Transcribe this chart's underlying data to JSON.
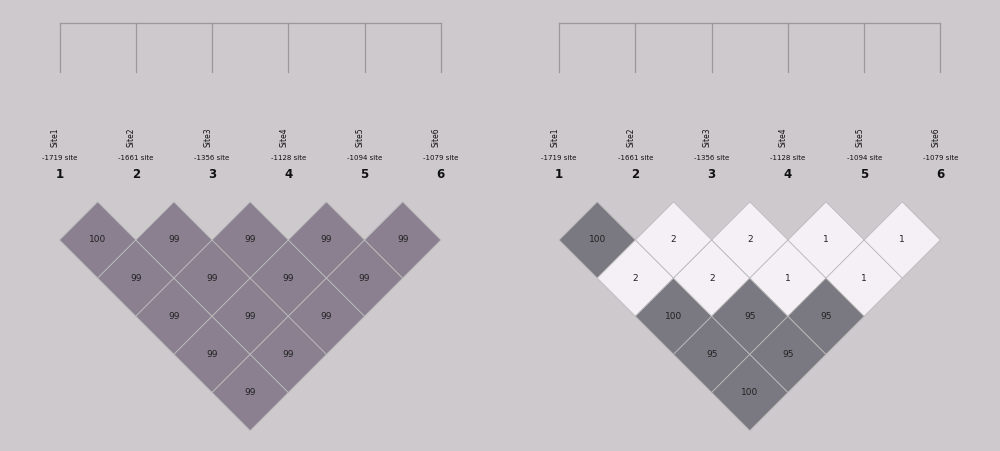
{
  "sites": [
    "Site1",
    "Site2",
    "Site3",
    "Site4",
    "Site5",
    "Site6"
  ],
  "positions": [
    "-1719 site",
    "-1661 site",
    "-1356 site",
    "-1128 site",
    "-1094 site",
    "-1079 site"
  ],
  "bg_color": "#cdc9cd",
  "panel_bg": "#cdc9cd",
  "left_ld_matrix": [
    [
      0,
      100,
      99,
      99,
      99,
      99
    ],
    [
      100,
      0,
      99,
      99,
      99,
      99
    ],
    [
      99,
      99,
      0,
      99,
      99,
      99
    ],
    [
      99,
      99,
      99,
      0,
      99,
      99
    ],
    [
      99,
      99,
      99,
      99,
      0,
      99
    ],
    [
      99,
      99,
      99,
      99,
      99,
      0
    ]
  ],
  "right_ld_matrix": [
    [
      0,
      100,
      2,
      100,
      95,
      100
    ],
    [
      100,
      0,
      2,
      2,
      95,
      95
    ],
    [
      2,
      2,
      0,
      2,
      1,
      95
    ],
    [
      100,
      2,
      2,
      0,
      1,
      1
    ],
    [
      95,
      95,
      1,
      1,
      0,
      1
    ],
    [
      100,
      95,
      95,
      1,
      1,
      0
    ]
  ],
  "left_color_dark": "#8a8090",
  "right_color_dark": "#7a7880",
  "right_color_light": "#f5f0f5",
  "right_color_mid": "#9a9098",
  "diamond_half": 0.5,
  "label_color": "#222222",
  "bracket_color": "#999999",
  "edge_color": "#bbbbbb"
}
